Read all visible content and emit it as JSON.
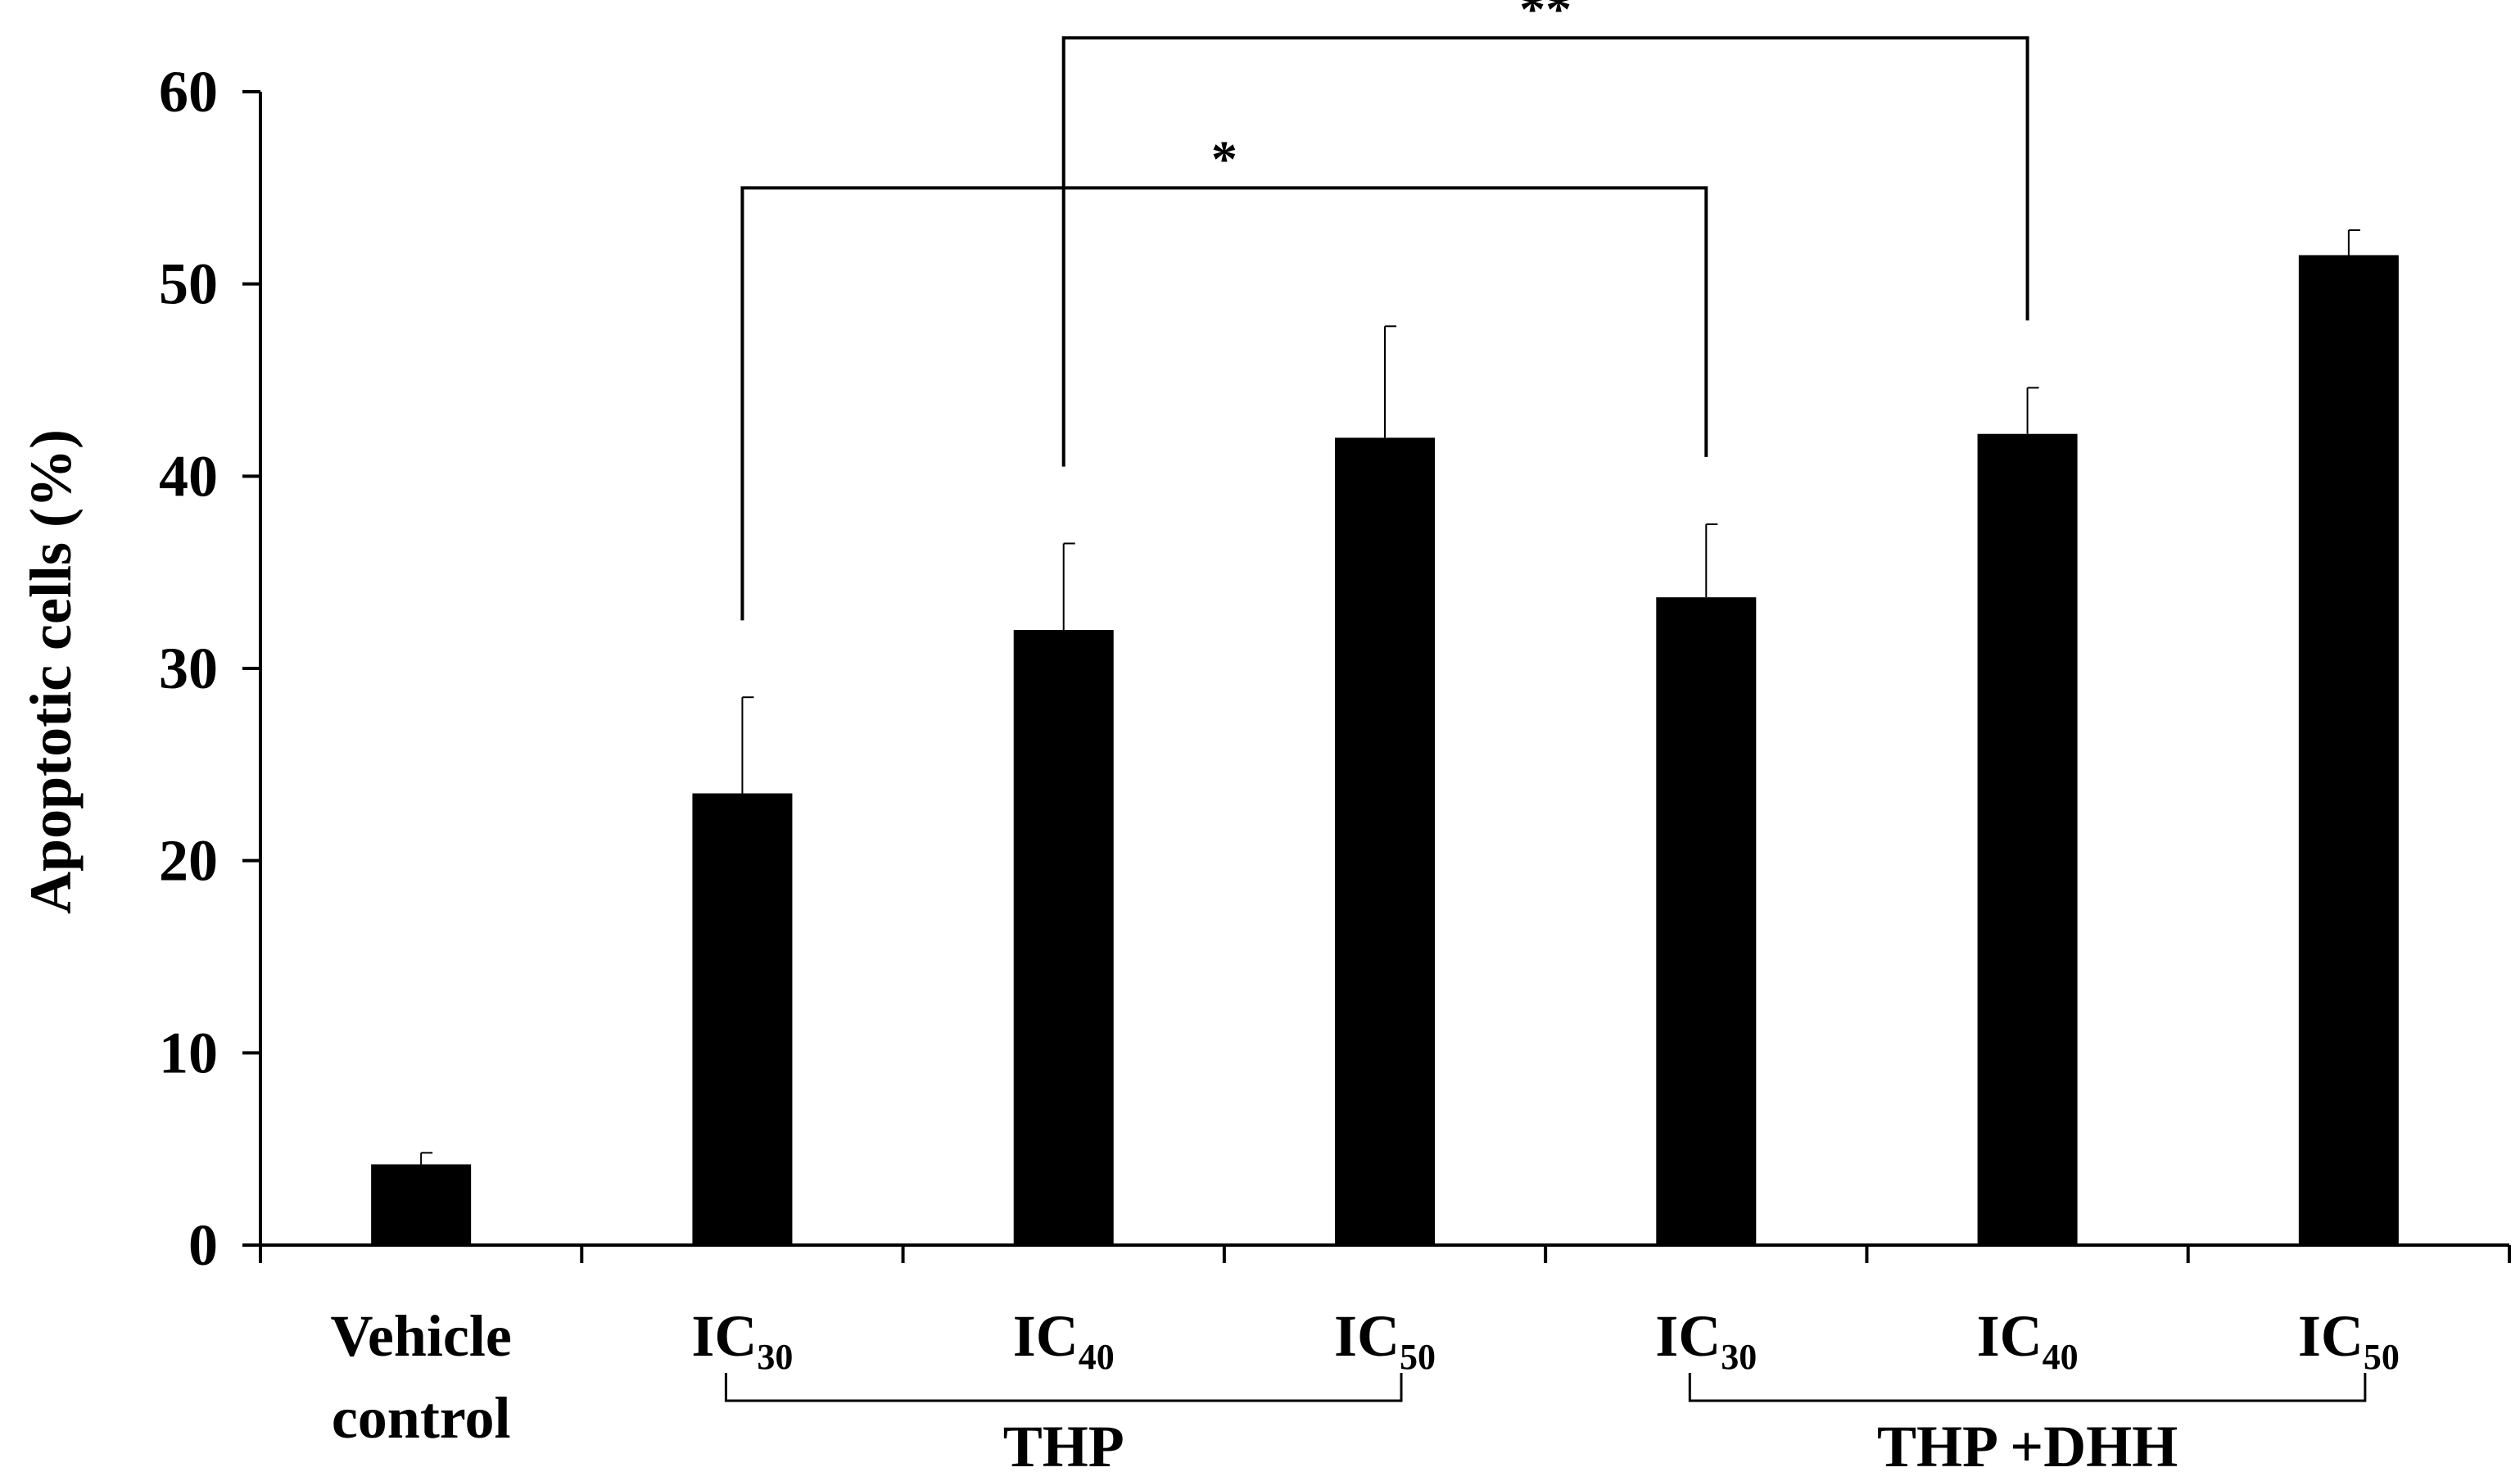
{
  "chart_data": {
    "type": "bar",
    "title": "",
    "xlabel": "",
    "ylabel": "Apoptotic cells (%)",
    "ylim": [
      0,
      60
    ],
    "yticks": [
      0,
      10,
      20,
      30,
      40,
      50,
      60
    ],
    "grid": false,
    "categories": [
      {
        "base": "Vehicle",
        "sub": "",
        "line2": "control"
      },
      {
        "base": "IC",
        "sub": "30",
        "line2": ""
      },
      {
        "base": "IC",
        "sub": "40",
        "line2": ""
      },
      {
        "base": "IC",
        "sub": "50",
        "line2": ""
      },
      {
        "base": "IC",
        "sub": "30",
        "line2": ""
      },
      {
        "base": "IC",
        "sub": "40",
        "line2": ""
      },
      {
        "base": "IC",
        "sub": "50",
        "line2": ""
      }
    ],
    "values": [
      4.2,
      23.5,
      32.0,
      42.0,
      33.7,
      42.2,
      51.5
    ],
    "errors": [
      0.6,
      5.0,
      4.5,
      5.8,
      3.8,
      2.4,
      1.3
    ],
    "bar_color": "#000000",
    "groups": [
      {
        "label": "THP",
        "from": 1,
        "to": 3
      },
      {
        "label": "THP +DHH",
        "from": 4,
        "to": 6
      }
    ],
    "significance": [
      {
        "from": 1,
        "to": 4,
        "label": "*",
        "level": 55
      },
      {
        "from": 2,
        "to": 5,
        "label": "**",
        "level": 62.8
      }
    ]
  }
}
